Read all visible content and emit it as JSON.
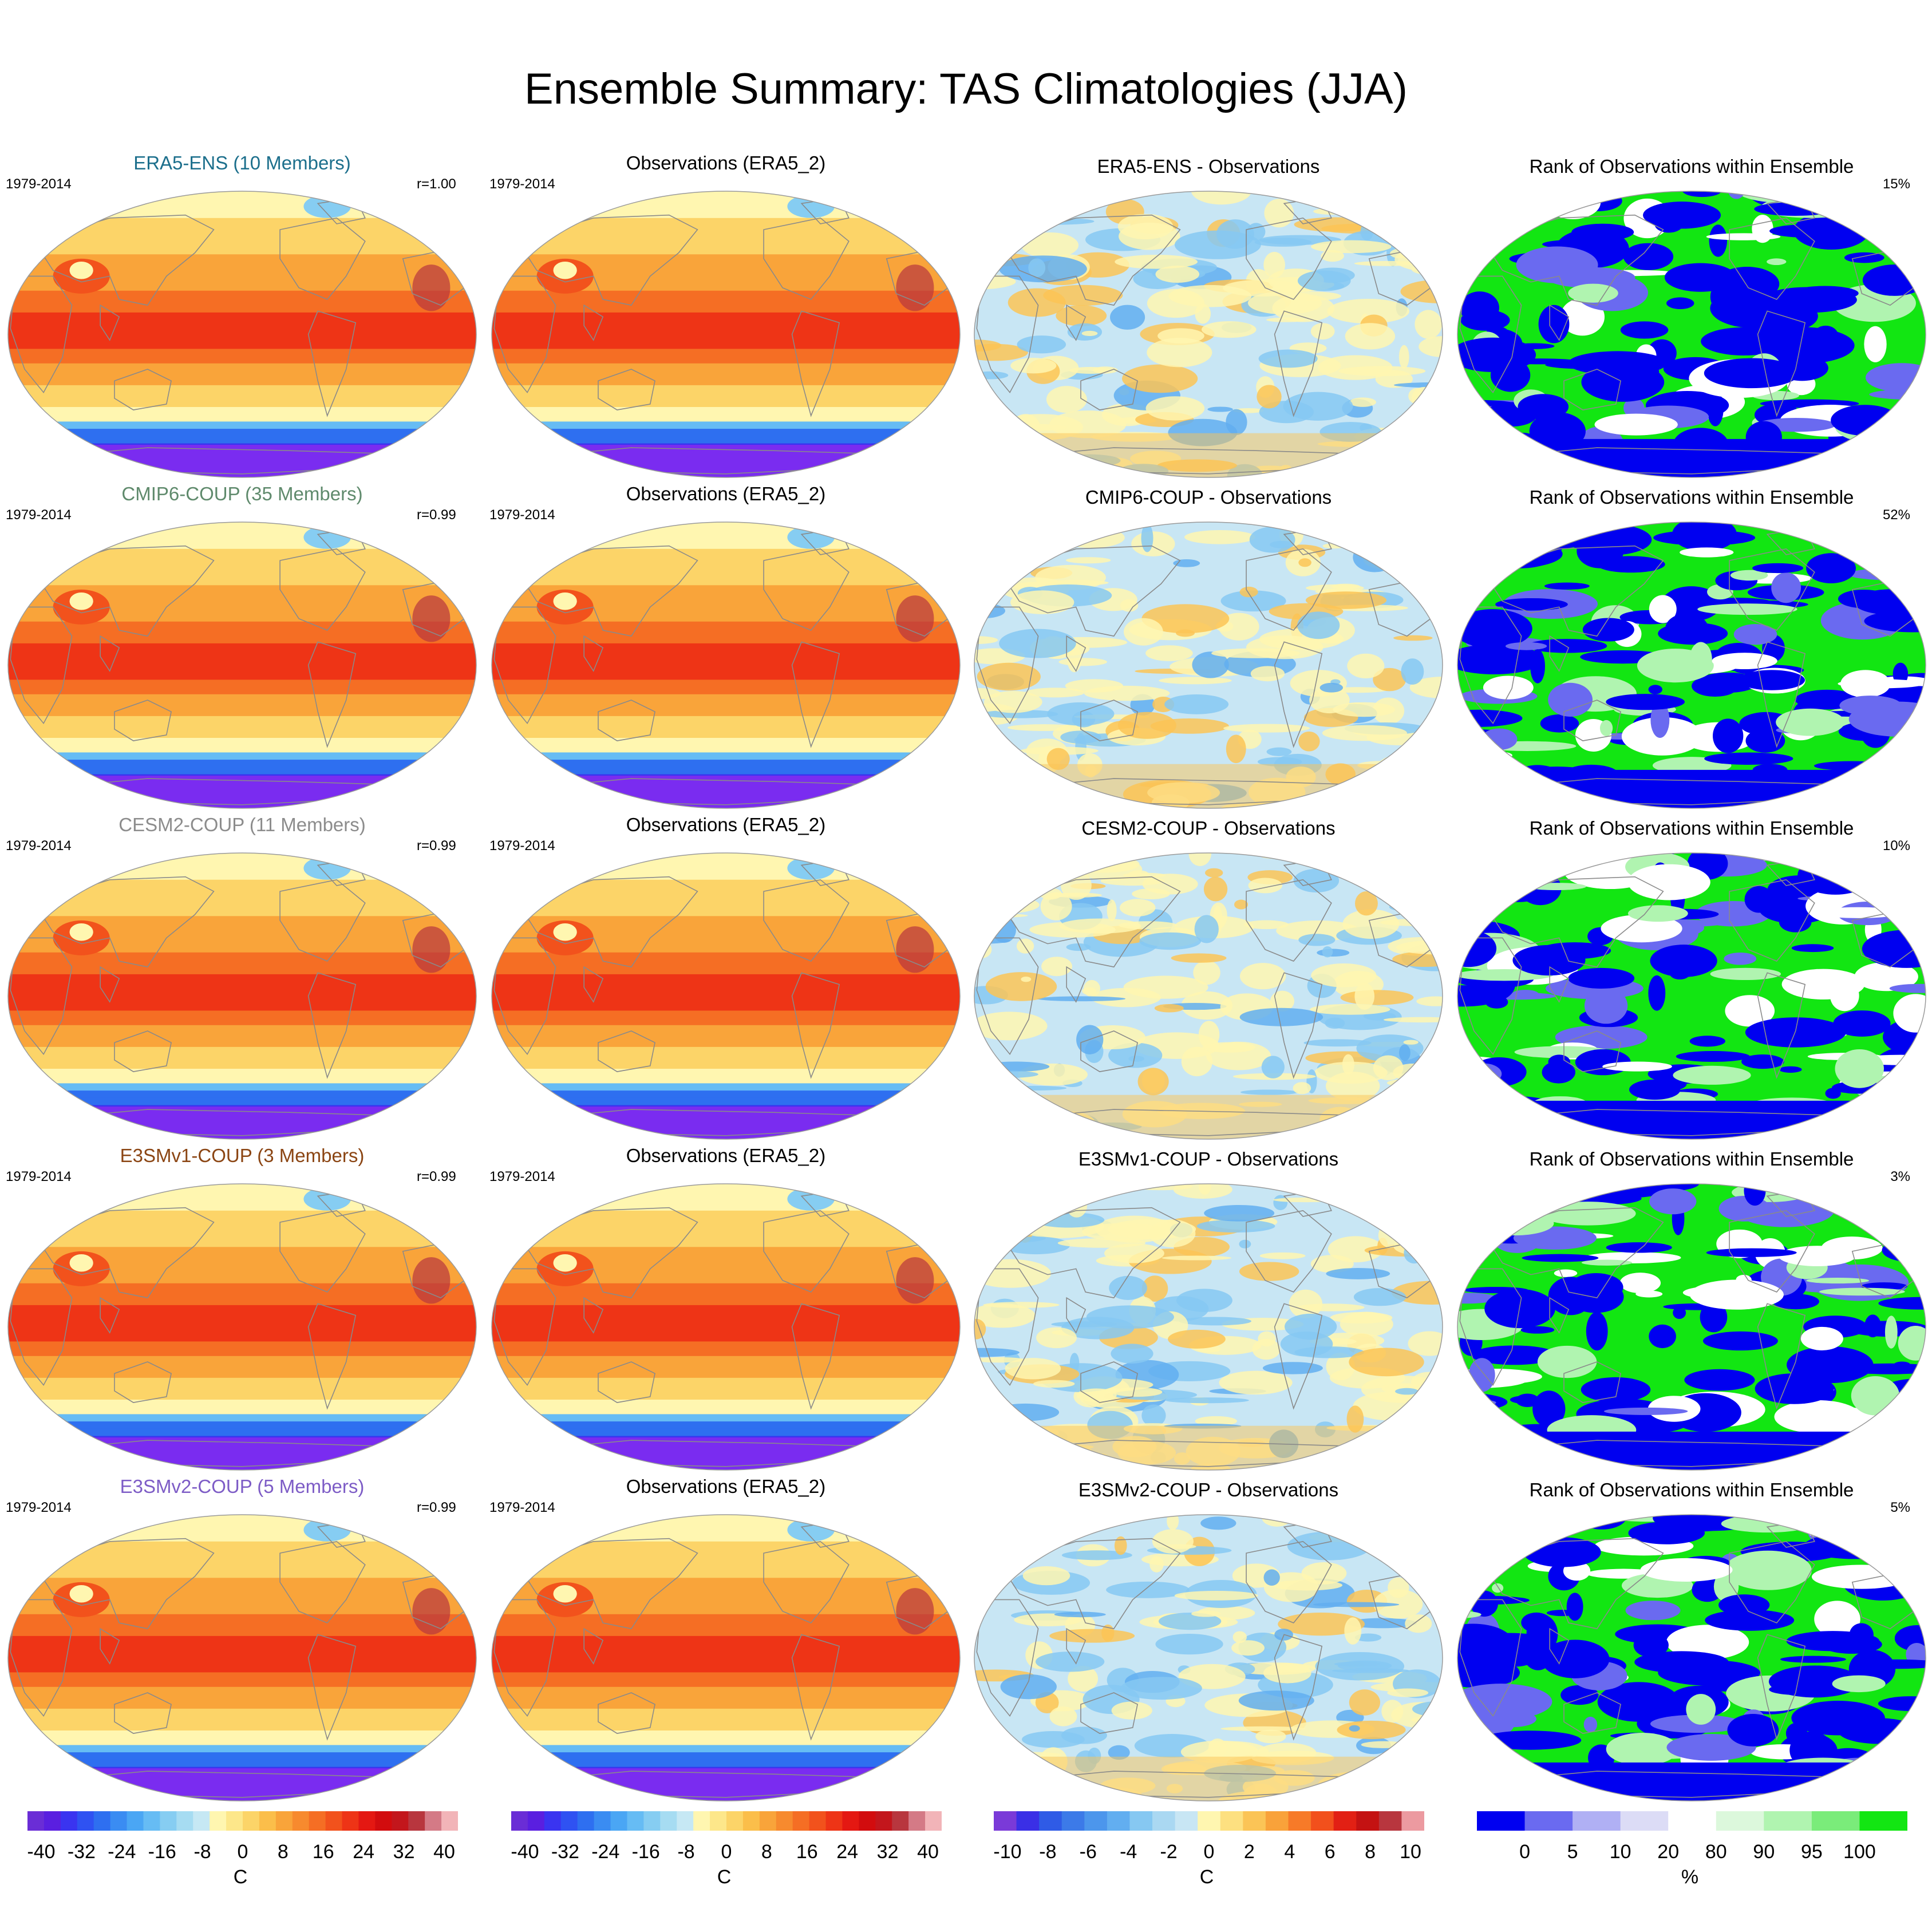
{
  "title": "Ensemble Summary: TAS Climatologies (JJA)",
  "rows": [
    {
      "model_title": "ERA5-ENS (10 Members)",
      "model_color": "#1c6f8c",
      "period": "1979-2014",
      "corr": "r=1.00",
      "obs_title": "Observations (ERA5_2)",
      "obs_period": "1979-2014",
      "diff_title": "ERA5-ENS - Observations",
      "rank_title": "Rank of Observations within Ensemble",
      "rank_pct": "15%"
    },
    {
      "model_title": "CMIP6-COUP (35 Members)",
      "model_color": "#5f8a6c",
      "period": "1979-2014",
      "corr": "r=0.99",
      "obs_title": "Observations (ERA5_2)",
      "obs_period": "1979-2014",
      "diff_title": "CMIP6-COUP - Observations",
      "rank_title": "Rank of Observations within Ensemble",
      "rank_pct": "52%"
    },
    {
      "model_title": "CESM2-COUP (11 Members)",
      "model_color": "#8c8c8c",
      "period": "1979-2014",
      "corr": "r=0.99",
      "obs_title": "Observations (ERA5_2)",
      "obs_period": "1979-2014",
      "diff_title": "CESM2-COUP - Observations",
      "rank_title": "Rank of Observations within Ensemble",
      "rank_pct": "10%"
    },
    {
      "model_title": "E3SMv1-COUP (3 Members)",
      "model_color": "#8b4513",
      "period": "1979-2014",
      "corr": "r=0.99",
      "obs_title": "Observations (ERA5_2)",
      "obs_period": "1979-2014",
      "diff_title": "E3SMv1-COUP - Observations",
      "rank_title": "Rank of Observations within Ensemble",
      "rank_pct": "3%"
    },
    {
      "model_title": "E3SMv2-COUP (5 Members)",
      "model_color": "#7d5cc6",
      "period": "1979-2014",
      "corr": "r=0.99",
      "obs_title": "Observations (ERA5_2)",
      "obs_period": "1979-2014",
      "diff_title": "E3SMv2-COUP - Observations",
      "rank_title": "Rank of Observations within Ensemble",
      "rank_pct": "5%"
    }
  ],
  "colorbars": [
    {
      "unit": "C",
      "labels": [
        "-40",
        "-32",
        "-24",
        "-16",
        "-8",
        "0",
        "8",
        "16",
        "24",
        "32",
        "40"
      ],
      "colors": [
        "#6a2dd6",
        "#5a1fe0",
        "#3a34f0",
        "#2f52f2",
        "#2e6ff0",
        "#3a8cf2",
        "#4aa6f4",
        "#66bcf4",
        "#86cdf2",
        "#a6dcf2",
        "#c6e8f4",
        "#fff6b0",
        "#fde78a",
        "#fcd468",
        "#fbbe4a",
        "#f9a43a",
        "#f78a2e",
        "#f56e24",
        "#f2521c",
        "#ee3416",
        "#e41812",
        "#d20c0e",
        "#c3161c",
        "#b8363e",
        "#d47a86",
        "#f2b4b8"
      ]
    },
    {
      "unit": "C",
      "labels": [
        "-40",
        "-32",
        "-24",
        "-16",
        "-8",
        "0",
        "8",
        "16",
        "24",
        "32",
        "40"
      ],
      "colors": [
        "#6a2dd6",
        "#5a1fe0",
        "#3a34f0",
        "#2f52f2",
        "#2e6ff0",
        "#3a8cf2",
        "#4aa6f4",
        "#66bcf4",
        "#86cdf2",
        "#a6dcf2",
        "#c6e8f4",
        "#fff6b0",
        "#fde78a",
        "#fcd468",
        "#fbbe4a",
        "#f9a43a",
        "#f78a2e",
        "#f56e24",
        "#f2521c",
        "#ee3416",
        "#e41812",
        "#d20c0e",
        "#c3161c",
        "#b8363e",
        "#d47a86",
        "#f2b4b8"
      ]
    },
    {
      "unit": "C",
      "labels": [
        "-10",
        "-8",
        "-6",
        "-4",
        "-2",
        "0",
        "2",
        "4",
        "6",
        "8",
        "10"
      ],
      "colors": [
        "#7a3ad8",
        "#3a2fe6",
        "#2f5be6",
        "#3c7ae8",
        "#4c96ec",
        "#62aef0",
        "#86c8f2",
        "#aad8f2",
        "#c8e6f4",
        "#fff6b0",
        "#fde080",
        "#fbc456",
        "#f9a23a",
        "#f77a28",
        "#f2501c",
        "#e22014",
        "#c41212",
        "#b8363e",
        "#ec9aa0"
      ]
    },
    {
      "unit": "%",
      "labels": [
        "0",
        "5",
        "10",
        "20",
        "80",
        "90",
        "95",
        "100"
      ],
      "colors": [
        "#0000f0",
        "#6a6af0",
        "#b0b0f4",
        "#dcdcf6",
        "#ffffff",
        "#dcf8dc",
        "#b0f4b0",
        "#7aec7a",
        "#12e612"
      ]
    }
  ]
}
